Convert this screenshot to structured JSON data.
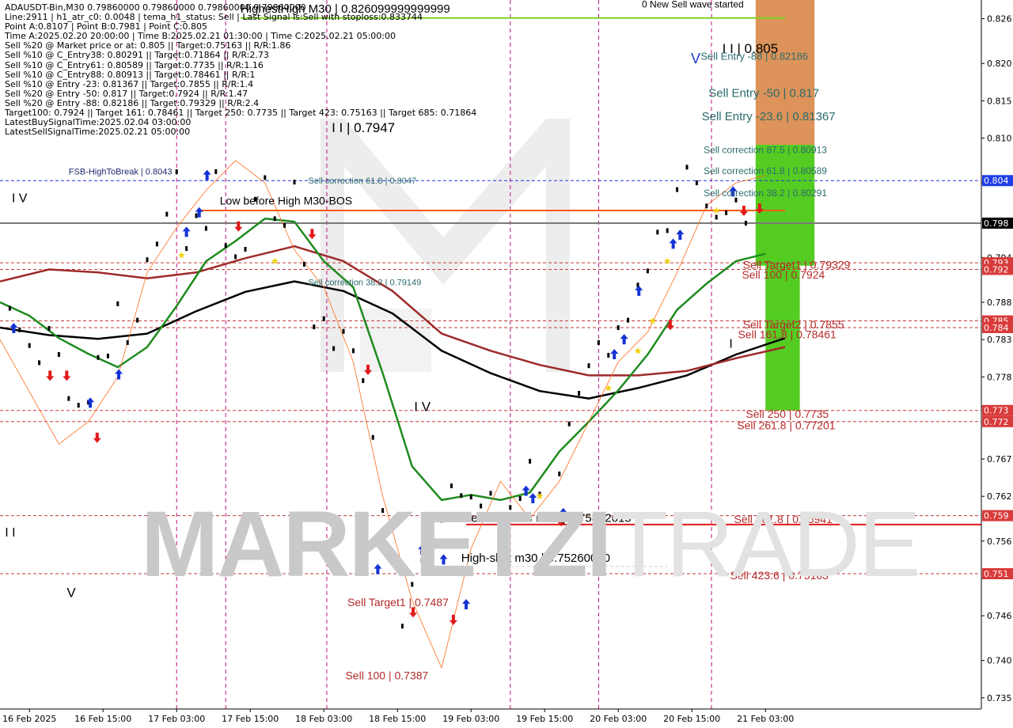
{
  "header_lines": [
    "ADAUSDT-Bin,M30  0.79860000 0.79860000 0.79860000 0.79860000",
    "Line:2911 | h1_atr_c0: 0.0048 | tema_h1_status: Sell | Last Signal is:Sell with stoploss:0.833744",
    "Point A:0.8107 | Point B:0.7981 | Point C:0.805",
    "Time A:2025.02.20 20:00:00 | Time B:2025.02.21 01:30:00 | Time C:2025.02.21 05:00:00",
    "Sell %20 @ Market price or at: 0.805 || Target:0.75163 || R/R:1.86",
    "Sell %10 @ C_Entry38: 0.80291 || Target:0.71864 || R/R:2.73",
    "Sell %10 @ C_Entry61: 0.80589 || Target:0.7735 || R/R:1.16",
    "Sell %10 @ C_Entry88: 0.80913 || Target:0.78461 || R/R:1",
    "Sell %10 @ Entry -23: 0.81367 || Target:0.7855 || R/R:1.4",
    "Sell %20 @ Entry -50: 0.817 || Target:0.7924 || R/R:1.47",
    "Sell %20 @ Entry -88: 0.82186 || Target:0.79329 || R/R:2.4",
    "Target100: 0.7924 || Target 161: 0.78461 || Target 250: 0.7735 || Target 423: 0.75163 || Target 685: 0.71864",
    "LatestBuySignalTime:2025.02.04 03:00:00",
    "LatestSellSignalTime:2025.02.21 05:00:00"
  ],
  "watermark": {
    "part1": "MARKETZI",
    "part2": "TRADE"
  },
  "chart_data": {
    "type": "candlestick",
    "symbol": "ADAUSDT-Bin",
    "timeframe": "M30",
    "ylim": [
      0.7335,
      0.8285
    ],
    "xlim": [
      0,
      100
    ],
    "y_ticks": [
      0.826,
      0.82,
      0.815,
      0.81,
      0.804,
      0.799,
      0.794,
      0.788,
      0.783,
      0.778,
      0.774,
      0.767,
      0.762,
      0.756,
      0.751,
      0.746,
      0.74,
      0.735
    ],
    "y_tick_labels": [
      "0.826",
      "0.820",
      "0.815",
      "0.810",
      "",
      "",
      "0.794",
      "0.788",
      "0.783",
      "0.778",
      "",
      "0.767",
      "0.762",
      "0.756",
      "",
      "0.746",
      "0.740",
      "0.735"
    ],
    "x_ticks": [
      {
        "label": "16 Feb 2025",
        "x": 3.0
      },
      {
        "label": "16 Feb 15:00",
        "x": 10.5
      },
      {
        "label": "17 Feb 03:00",
        "x": 18.0
      },
      {
        "label": "17 Feb 15:00",
        "x": 25.5
      },
      {
        "label": "18 Feb 03:00",
        "x": 33.0
      },
      {
        "label": "18 Feb 15:00",
        "x": 40.5
      },
      {
        "label": "19 Feb 03:00",
        "x": 48.0
      },
      {
        "label": "19 Feb 15:00",
        "x": 55.5
      },
      {
        "label": "20 Feb 03:00",
        "x": 63.0
      },
      {
        "label": "20 Feb 15:00",
        "x": 70.5
      },
      {
        "label": "21 Feb 03:00",
        "x": 78.0
      }
    ],
    "day_separators": [
      18.0,
      23.0,
      33.3,
      52.0,
      61.0,
      72.5
    ],
    "price_tags": [
      {
        "value": 0.8043,
        "label": "0.804",
        "bg": "#1f3ee8",
        "fg": "#ffffff"
      },
      {
        "value": 0.7986,
        "label": "0.798",
        "bg": "#000000",
        "fg": "#ffffff"
      },
      {
        "value": 0.79329,
        "label": "0.793",
        "bg": "#d93a3a",
        "fg": "#ffffff"
      },
      {
        "value": 0.7924,
        "label": "0.792",
        "bg": "#d93a3a",
        "fg": "#ffffff"
      },
      {
        "value": 0.7855,
        "label": "0.785",
        "bg": "#d93a3a",
        "fg": "#ffffff"
      },
      {
        "value": 0.78461,
        "label": "0.784",
        "bg": "#d93a3a",
        "fg": "#ffffff"
      },
      {
        "value": 0.7735,
        "label": "0.773",
        "bg": "#d93a3a",
        "fg": "#ffffff"
      },
      {
        "value": 0.77201,
        "label": "0.772",
        "bg": "#d93a3a",
        "fg": "#ffffff"
      },
      {
        "value": 0.75941,
        "label": "0.759",
        "bg": "#d93a3a",
        "fg": "#ffffff"
      },
      {
        "value": 0.75163,
        "label": "0.751",
        "bg": "#d93a3a",
        "fg": "#ffffff"
      }
    ],
    "hlines": [
      {
        "value": 0.8043,
        "color": "#2233dd",
        "dash": true,
        "x1": 0,
        "x2": 100
      },
      {
        "value": 0.7986,
        "color": "#7a7a7a",
        "dash": false,
        "x1": 0,
        "x2": 100
      },
      {
        "value": 0.79329,
        "color": "#c23a3a",
        "dash": true,
        "x1": 0,
        "x2": 100
      },
      {
        "value": 0.7924,
        "color": "#c23a3a",
        "dash": true,
        "x1": 0,
        "x2": 100
      },
      {
        "value": 0.7855,
        "color": "#c23a3a",
        "dash": true,
        "x1": 0,
        "x2": 100
      },
      {
        "value": 0.78461,
        "color": "#c23a3a",
        "dash": true,
        "x1": 0,
        "x2": 100
      },
      {
        "value": 0.7735,
        "color": "#c23a3a",
        "dash": true,
        "x1": 0,
        "x2": 100
      },
      {
        "value": 0.77201,
        "color": "#c23a3a",
        "dash": true,
        "x1": 0,
        "x2": 100
      },
      {
        "value": 0.75941,
        "color": "#c23a3a",
        "dash": true,
        "x1": 0,
        "x2": 100
      },
      {
        "value": 0.75163,
        "color": "#c23a3a",
        "dash": true,
        "x1": 0,
        "x2": 100
      },
      {
        "value": 0.82609,
        "color": "#7ed321",
        "dash": false,
        "x1": 24.5,
        "x2": 80.0
      },
      {
        "value": 0.8003,
        "color": "#ff5a1a",
        "dash": false,
        "x1": 20.5,
        "x2": 80.0
      },
      {
        "value": 0.75822,
        "color": "#e01a1a",
        "dash": false,
        "x1": 47.5,
        "x2": 100
      },
      {
        "value": 0.7526,
        "color": "#cccccc",
        "dash": true,
        "x1": 52.0,
        "x2": 68.0
      }
    ],
    "zones": [
      {
        "x1": 77.0,
        "x2": 83.0,
        "y1": 0.8285,
        "y2": 0.8091,
        "color": "#dd9359"
      },
      {
        "x1": 77.0,
        "x2": 83.0,
        "y1": 0.8091,
        "y2": 0.7929,
        "color": "#55cc22"
      },
      {
        "x1": 78.0,
        "x2": 81.5,
        "y1": 0.7929,
        "y2": 0.7735,
        "color": "#55cc22"
      }
    ],
    "series": [
      {
        "name": "ma_black",
        "color": "#000000",
        "width": 2.5,
        "x": [
          0,
          5,
          10,
          15,
          20,
          25,
          30,
          35,
          40,
          45,
          50,
          55,
          60,
          65,
          70,
          75,
          80
        ],
        "y": [
          0.7846,
          0.7836,
          0.7831,
          0.7838,
          0.7868,
          0.7894,
          0.7908,
          0.7895,
          0.7865,
          0.7815,
          0.7785,
          0.7761,
          0.7751,
          0.7765,
          0.7782,
          0.781,
          0.7832
        ]
      },
      {
        "name": "ma_brown",
        "color": "#9e2a2a",
        "width": 2.5,
        "x": [
          0,
          5,
          10,
          15,
          20,
          25,
          30,
          35,
          40,
          45,
          50,
          55,
          60,
          65,
          70,
          75,
          80
        ],
        "y": [
          0.7908,
          0.7924,
          0.792,
          0.7912,
          0.792,
          0.7939,
          0.7955,
          0.7935,
          0.7895,
          0.7838,
          0.7815,
          0.7796,
          0.7782,
          0.7782,
          0.7788,
          0.7805,
          0.782
        ]
      },
      {
        "name": "ma_green",
        "color": "#1e8b1e",
        "width": 2.5,
        "x": [
          0,
          3,
          6,
          9,
          12,
          15,
          18,
          21,
          24,
          27,
          30,
          33,
          36,
          39,
          42,
          45,
          48,
          51,
          54,
          57,
          60,
          63,
          66,
          69,
          72,
          75,
          78
        ],
        "y": [
          0.788,
          0.7862,
          0.7832,
          0.7811,
          0.7793,
          0.782,
          0.7875,
          0.7935,
          0.7962,
          0.7992,
          0.7988,
          0.7935,
          0.79,
          0.7785,
          0.766,
          0.7615,
          0.7622,
          0.7615,
          0.7625,
          0.768,
          0.772,
          0.7762,
          0.781,
          0.787,
          0.7905,
          0.7935,
          0.7945
        ]
      },
      {
        "name": "price_band",
        "color": "#ff6a1a",
        "width": 0.8,
        "x": [
          0,
          3,
          6,
          9,
          12,
          15,
          18,
          21,
          24,
          27,
          30,
          33,
          36,
          39,
          42,
          45,
          48,
          51,
          54,
          57,
          60,
          63,
          66,
          69,
          72,
          75,
          78
        ],
        "y": [
          0.783,
          0.776,
          0.769,
          0.772,
          0.778,
          0.792,
          0.798,
          0.803,
          0.807,
          0.804,
          0.795,
          0.79,
          0.78,
          0.762,
          0.748,
          0.739,
          0.755,
          0.764,
          0.759,
          0.764,
          0.772,
          0.78,
          0.784,
          0.792,
          0.801,
          0.804,
          0.805
        ]
      }
    ],
    "candles": [
      [
        1,
        0.7872
      ],
      [
        2,
        0.7843
      ],
      [
        3,
        0.7822
      ],
      [
        4,
        0.7799
      ],
      [
        5,
        0.7845
      ],
      [
        6,
        0.781
      ],
      [
        7,
        0.7751
      ],
      [
        8,
        0.7742
      ],
      [
        9,
        0.7746
      ],
      [
        10,
        0.7806
      ],
      [
        11,
        0.7808
      ],
      [
        12,
        0.7878
      ],
      [
        13,
        0.7826
      ],
      [
        14,
        0.7856
      ],
      [
        15,
        0.7937
      ],
      [
        16,
        0.7958
      ],
      [
        17,
        0.7998
      ],
      [
        18,
        0.8055
      ],
      [
        19,
        0.7952
      ],
      [
        20,
        0.7996
      ],
      [
        21,
        0.7979
      ],
      [
        22,
        0.8055
      ],
      [
        23,
        0.7956
      ],
      [
        24,
        0.7941
      ],
      [
        25,
        0.7951
      ],
      [
        26,
        0.8018
      ],
      [
        27,
        0.8047
      ],
      [
        28,
        0.7992
      ],
      [
        29,
        0.7983
      ],
      [
        30,
        0.8041
      ],
      [
        31,
        0.7931
      ],
      [
        32,
        0.7847
      ],
      [
        33,
        0.7858
      ],
      [
        34,
        0.7818
      ],
      [
        35,
        0.7841
      ],
      [
        36,
        0.7815
      ],
      [
        37,
        0.7775
      ],
      [
        38,
        0.7699
      ],
      [
        39,
        0.7601
      ],
      [
        40,
        0.7532
      ],
      [
        41,
        0.7446
      ],
      [
        42,
        0.7502
      ],
      [
        43,
        0.7534
      ],
      [
        44,
        0.7579
      ],
      [
        45,
        0.7588
      ],
      [
        46,
        0.7634
      ],
      [
        47,
        0.7621
      ],
      [
        48,
        0.7619
      ],
      [
        49,
        0.7607
      ],
      [
        50,
        0.7624
      ],
      [
        51,
        0.7583
      ],
      [
        52,
        0.7605
      ],
      [
        53,
        0.7617
      ],
      [
        54,
        0.7667
      ],
      [
        55,
        0.7623
      ],
      [
        56,
        0.7591
      ],
      [
        57,
        0.765
      ],
      [
        58,
        0.7717
      ],
      [
        59,
        0.7758
      ],
      [
        60,
        0.7795
      ],
      [
        61,
        0.7826
      ],
      [
        62,
        0.7809
      ],
      [
        63,
        0.7846
      ],
      [
        64,
        0.7856
      ],
      [
        65,
        0.7903
      ],
      [
        66,
        0.7922
      ],
      [
        67,
        0.7974
      ],
      [
        68,
        0.7976
      ],
      [
        69,
        0.8031
      ],
      [
        70,
        0.8061
      ],
      [
        71,
        0.804
      ],
      [
        72,
        0.8009
      ],
      [
        73,
        0.7994
      ],
      [
        74,
        0.8
      ],
      [
        75,
        0.8017
      ],
      [
        76,
        0.7986
      ]
    ],
    "labels": [
      {
        "text": "HighestHigh   M30 | 0.826099999999999",
        "x": 24.5,
        "y": 0.8268,
        "color": "#000000",
        "size": 15
      },
      {
        "text": "0 New Sell wave started",
        "x": 65.4,
        "y": 0.8275,
        "color": "#000000",
        "size": 12
      },
      {
        "text": "I I | 0.805",
        "x": 73.6,
        "y": 0.8214,
        "color": "#000000",
        "size": 17
      },
      {
        "text": "Sell Entry -88 | 0.82186",
        "x": 71.4,
        "y": 0.8205,
        "color": "#2d6b6b",
        "size": 13
      },
      {
        "text": "V",
        "x": 70.4,
        "y": 0.82,
        "color": "#1a3ecc",
        "size": 18
      },
      {
        "text": "Sell Entry -50 | 0.817",
        "x": 72.2,
        "y": 0.8155,
        "color": "#2d6b6b",
        "size": 15
      },
      {
        "text": "Sell Entry -23.6 | 0.81367",
        "x": 71.5,
        "y": 0.8124,
        "color": "#2d6b6b",
        "size": 15
      },
      {
        "text": "I I | 0.7947",
        "x": 33.8,
        "y": 0.8108,
        "color": "#000000",
        "size": 17
      },
      {
        "text": "Sell correction 87.5 | 0.80913",
        "x": 71.7,
        "y": 0.808,
        "color": "#2d6b6b",
        "size": 12
      },
      {
        "text": "FSB-HighToBreak | 0.8043",
        "x": 7.0,
        "y": 0.8051,
        "color": "#1f2a6e",
        "size": 11
      },
      {
        "text": "Sell correction 61.8 | 0.8047",
        "x": 31.4,
        "y": 0.8039,
        "color": "#2d6b6b",
        "size": 11
      },
      {
        "text": "Sell correction 61.8 | 0.80589",
        "x": 71.7,
        "y": 0.8052,
        "color": "#2d6b6b",
        "size": 12
      },
      {
        "text": "I V",
        "x": 1.2,
        "y": 0.8014,
        "color": "#000000",
        "size": 16
      },
      {
        "text": "Low before High   M30-BOS",
        "x": 22.4,
        "y": 0.8011,
        "color": "#000000",
        "size": 14
      },
      {
        "text": "Sell correction 38.2 | 0.80291",
        "x": 71.7,
        "y": 0.8022,
        "color": "#2d6b6b",
        "size": 12
      },
      {
        "text": "Sell correction 38.2 | 0.79149",
        "x": 31.4,
        "y": 0.7903,
        "color": "#2d6b6b",
        "size": 11
      },
      {
        "text": "Sell Target1 | 0.79329",
        "x": 75.7,
        "y": 0.7925,
        "color": "#b52a2a",
        "size": 14
      },
      {
        "text": "Sell 100 | 0.7924",
        "x": 75.6,
        "y": 0.7912,
        "color": "#b52a2a",
        "size": 14
      },
      {
        "text": "Sell Target2 | 0.7855",
        "x": 75.7,
        "y": 0.7845,
        "color": "#b52a2a",
        "size": 14
      },
      {
        "text": "Sell 161.8 | 0.78461",
        "x": 75.2,
        "y": 0.7832,
        "color": "#b52a2a",
        "size": 14
      },
      {
        "text": "I",
        "x": 74.3,
        "y": 0.7819,
        "color": "#000000",
        "size": 16
      },
      {
        "text": "I V",
        "x": 42.2,
        "y": 0.7734,
        "color": "#000000",
        "size": 17
      },
      {
        "text": "Sell 250 | 0.7735",
        "x": 76.0,
        "y": 0.7725,
        "color": "#b52a2a",
        "size": 14
      },
      {
        "text": "Sell 261.8 | 0.77201",
        "x": 75.1,
        "y": 0.771,
        "color": "#b52a2a",
        "size": 14
      },
      {
        "text": "Sell-Stoploss m30 | 0.75822615",
        "x": 47.2,
        "y": 0.7586,
        "color": "#000000",
        "size": 15
      },
      {
        "text": "Sell 361.8 | 0.75941",
        "x": 74.8,
        "y": 0.7584,
        "color": "#b52a2a",
        "size": 14
      },
      {
        "text": "I I",
        "x": 0.5,
        "y": 0.7566,
        "color": "#000000",
        "size": 16
      },
      {
        "text": "High-shift m30 | 0.75260000",
        "x": 47.0,
        "y": 0.7532,
        "color": "#000000",
        "size": 15
      },
      {
        "text": "Sell 423.6 | 0.75163",
        "x": 74.4,
        "y": 0.7509,
        "color": "#b52a2a",
        "size": 14
      },
      {
        "text": "V",
        "x": 6.8,
        "y": 0.7485,
        "color": "#000000",
        "size": 17
      },
      {
        "text": "Sell Target1 | 0.7487",
        "x": 35.4,
        "y": 0.7473,
        "color": "#b52a2a",
        "size": 14
      },
      {
        "text": "Sell 100 | 0.7387",
        "x": 35.2,
        "y": 0.7375,
        "color": "#b52a2a",
        "size": 14
      }
    ],
    "blue_arrows": [
      [
        1.4,
        0.7845
      ],
      [
        9.2,
        0.7745
      ],
      [
        12.1,
        0.7783
      ],
      [
        19.0,
        0.7974
      ],
      [
        20.3,
        0.8
      ],
      [
        21.1,
        0.805
      ],
      [
        38.5,
        0.7522
      ],
      [
        43.0,
        0.7548
      ],
      [
        45.2,
        0.7535
      ],
      [
        47.5,
        0.7475
      ],
      [
        53.6,
        0.7627
      ],
      [
        54.3,
        0.7617
      ],
      [
        57.4,
        0.7597
      ],
      [
        62.6,
        0.781
      ],
      [
        63.6,
        0.783
      ],
      [
        65.1,
        0.7895
      ],
      [
        68.6,
        0.7958
      ],
      [
        69.3,
        0.797
      ],
      [
        74.7,
        0.8028
      ]
    ],
    "red_arrows": [
      [
        5.1,
        0.7782
      ],
      [
        6.8,
        0.7782
      ],
      [
        9.9,
        0.7699
      ],
      [
        24.3,
        0.7982
      ],
      [
        31.8,
        0.7972
      ],
      [
        37.5,
        0.779
      ],
      [
        42.1,
        0.7465
      ],
      [
        46.2,
        0.7455
      ],
      [
        57.2,
        0.7587
      ],
      [
        68.3,
        0.785
      ],
      [
        75.8,
        0.8003
      ],
      [
        77.4,
        0.8006
      ]
    ],
    "stars": [
      [
        18.5,
        0.7943
      ],
      [
        28.0,
        0.7935
      ],
      [
        55.0,
        0.762
      ],
      [
        62.0,
        0.7765
      ],
      [
        65.0,
        0.7815
      ],
      [
        66.5,
        0.7855
      ],
      [
        68.0,
        0.7935
      ],
      [
        73.0,
        0.8003
      ]
    ],
    "markers": [
      {
        "type": "V",
        "label": "V",
        "x": 70.4,
        "y": 0.82
      },
      {
        "type": "wave",
        "label": "I I",
        "x": 0.5,
        "y": 0.7566
      }
    ]
  }
}
